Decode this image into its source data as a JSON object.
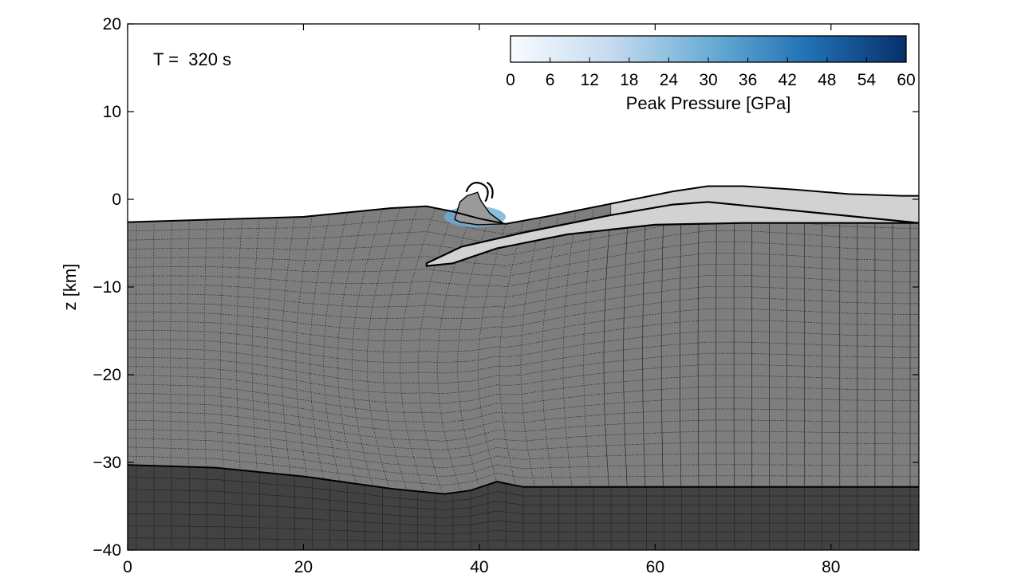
{
  "chart_data": {
    "type": "heatmap",
    "annotation": "T =  320 s",
    "xlabel": "",
    "ylabel": "z [km]",
    "xlim": [
      0,
      90
    ],
    "ylim": [
      -40,
      20
    ],
    "x_ticks": [
      0,
      20,
      40,
      60,
      80
    ],
    "y_ticks": [
      20,
      10,
      0,
      -10,
      -20,
      -30,
      -40
    ],
    "y_tick_labels": [
      "20",
      "10",
      "0",
      "−10",
      "−20",
      "−30",
      "−40"
    ],
    "colorbar": {
      "label": "Peak Pressure [GPa]",
      "range": [
        0,
        60
      ],
      "ticks": [
        0,
        6,
        12,
        18,
        24,
        30,
        36,
        42,
        48,
        54,
        60
      ],
      "colors": [
        "#f7fbff",
        "#c6dbef",
        "#6baed6",
        "#2171b5",
        "#08306b"
      ],
      "placement": "top-right"
    },
    "layers": {
      "surface": [
        [
          0,
          -2.6
        ],
        [
          10,
          -2.3
        ],
        [
          20,
          -2.0
        ],
        [
          30,
          -1.0
        ],
        [
          34,
          -0.8
        ],
        [
          37,
          -1.4
        ],
        [
          40,
          -2.2
        ],
        [
          43,
          -2.8
        ],
        [
          48,
          -1.9
        ],
        [
          55,
          -0.5
        ],
        [
          62,
          0.9
        ],
        [
          66,
          1.5
        ],
        [
          70,
          1.5
        ],
        [
          76,
          1.1
        ],
        [
          82,
          0.6
        ],
        [
          88,
          0.4
        ],
        [
          90,
          0.4
        ]
      ],
      "crust_mantle_boundary": [
        [
          0,
          -30.3
        ],
        [
          10,
          -30.6
        ],
        [
          20,
          -31.6
        ],
        [
          30,
          -33.0
        ],
        [
          36,
          -33.6
        ],
        [
          39,
          -33.2
        ],
        [
          42,
          -32.2
        ],
        [
          45,
          -32.8
        ],
        [
          60,
          -32.8
        ],
        [
          90,
          -32.8
        ]
      ],
      "sediment_base": [
        [
          0,
          -2.6
        ],
        [
          34,
          -2.6
        ],
        [
          45,
          -2.7
        ],
        [
          60,
          -2.7
        ],
        [
          90,
          -2.7
        ]
      ],
      "rebound_lobe": [
        [
          34,
          -7.3
        ],
        [
          38,
          -5.4
        ],
        [
          45,
          -3.8
        ],
        [
          55,
          -1.8
        ],
        [
          62,
          -0.6
        ],
        [
          66,
          -0.3
        ],
        [
          70,
          -0.7
        ],
        [
          90,
          -2.7
        ],
        [
          70,
          -2.7
        ],
        [
          60,
          -2.9
        ],
        [
          50,
          -4.0
        ],
        [
          42,
          -5.6
        ],
        [
          37,
          -7.3
        ],
        [
          34,
          -7.6
        ]
      ],
      "central_peak": [
        [
          37.2,
          -2.3
        ],
        [
          37.8,
          -0.3
        ],
        [
          38.6,
          0.4
        ],
        [
          39.8,
          0.8
        ],
        [
          40.2,
          -0.2
        ],
        [
          41.2,
          -1.6
        ],
        [
          42.8,
          -2.8
        ],
        [
          39.8,
          -2.9
        ],
        [
          37.8,
          -2.6
        ]
      ],
      "colors": {
        "crust": "#7e7e7e",
        "mantle": "#424242",
        "sediment": "#d2d2d2",
        "background": "#ffffff"
      }
    },
    "peak_pressure_zone": {
      "x": [
        36,
        43
      ],
      "z": [
        -3.2,
        -0.8
      ],
      "max_gpa": 12
    },
    "grid": true
  }
}
